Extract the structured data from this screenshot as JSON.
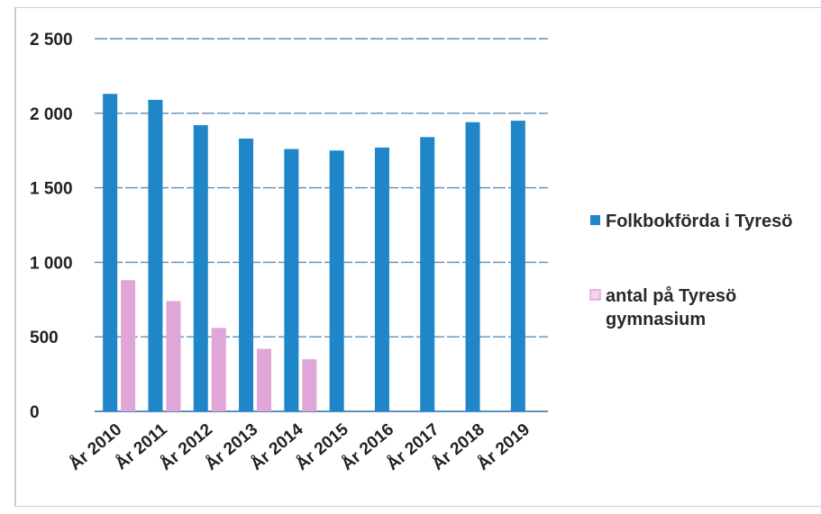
{
  "chart_data": {
    "type": "bar",
    "categories": [
      "År 2010",
      "År 2011",
      "År 2012",
      "År 2013",
      "År 2014",
      "År 2015",
      "År 2016",
      "År 2017",
      "År 2018",
      "År 2019"
    ],
    "series": [
      {
        "name": "Folkbokförda i Tyresö",
        "color": "#1f86c9",
        "values": [
          2130,
          2090,
          1920,
          1830,
          1760,
          1750,
          1770,
          1840,
          1940,
          1950
        ]
      },
      {
        "name": "antal på Tyresö gymnasium",
        "color": "#e0a6d7",
        "values": [
          880,
          740,
          560,
          420,
          350,
          null,
          null,
          null,
          null,
          null
        ]
      }
    ],
    "ylim": [
      0,
      2500
    ],
    "yticks": [
      0,
      500,
      1000,
      1500,
      2000,
      2500
    ],
    "ytick_labels": [
      "0",
      "500",
      "1 000",
      "1 500",
      "2 000",
      "2 500"
    ],
    "grid": true,
    "legend": "right"
  }
}
